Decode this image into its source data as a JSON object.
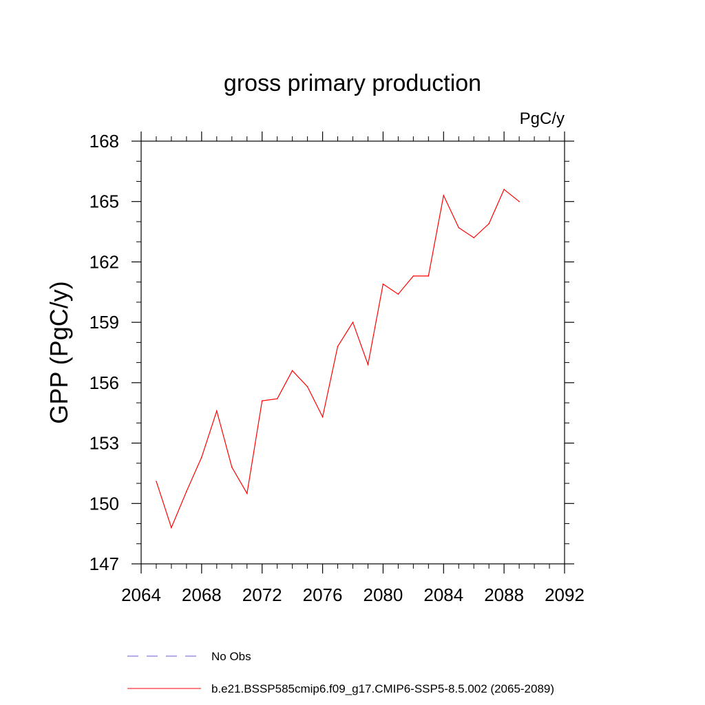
{
  "chart_data": {
    "type": "line",
    "title": "gross primary production",
    "units_label": "PgC/y",
    "xlabel": "",
    "ylabel": "GPP  (PgC/y)",
    "xlim": [
      2064,
      2092
    ],
    "ylim": [
      147,
      168
    ],
    "x_ticks": [
      2064,
      2068,
      2072,
      2076,
      2080,
      2084,
      2088,
      2092
    ],
    "y_ticks": [
      147,
      150,
      153,
      156,
      159,
      162,
      165,
      168
    ],
    "x_tick_labels": [
      "2064",
      "2068",
      "2072",
      "2076",
      "2080",
      "2084",
      "2088",
      "2092"
    ],
    "y_tick_labels": [
      "147",
      "150",
      "153",
      "156",
      "159",
      "162",
      "165",
      "168"
    ],
    "series": [
      {
        "name": "b.e21.BSSP585cmip6.f09_g17.CMIP6-SSP5-8.5.002 (2065-2089)",
        "color": "#ff0000",
        "dash": "solid",
        "x": [
          2065,
          2066,
          2067,
          2068,
          2069,
          2070,
          2071,
          2072,
          2073,
          2074,
          2075,
          2076,
          2077,
          2078,
          2079,
          2080,
          2081,
          2082,
          2083,
          2084,
          2085,
          2086,
          2087,
          2088,
          2089
        ],
        "values": [
          151.1,
          148.8,
          150.6,
          152.3,
          154.6,
          151.8,
          150.5,
          155.1,
          155.2,
          156.6,
          155.8,
          154.3,
          157.8,
          159.0,
          156.9,
          160.9,
          160.4,
          161.3,
          161.3,
          165.3,
          163.7,
          163.2,
          163.9,
          165.6,
          165.0
        ]
      }
    ],
    "legend": [
      {
        "label": "No Obs",
        "color": "#6a5acd",
        "dash": "dashed"
      },
      {
        "label": "b.e21.BSSP585cmip6.f09_g17.CMIP6-SSP5-8.5.002 (2065-2089)",
        "color": "#ff0000",
        "dash": "solid"
      }
    ],
    "legend_position": "bottom"
  }
}
